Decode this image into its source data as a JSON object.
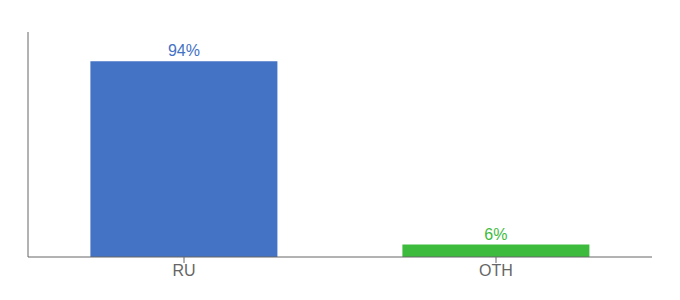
{
  "chart_data": {
    "type": "bar",
    "categories": [
      "RU",
      "OTH"
    ],
    "values": [
      94,
      6
    ],
    "value_labels": [
      "94%",
      "6%"
    ],
    "colors": [
      "#4472c4",
      "#3dbb3d"
    ],
    "ylim": [
      0,
      108
    ],
    "data_labels": true,
    "tick_labels": "x"
  }
}
